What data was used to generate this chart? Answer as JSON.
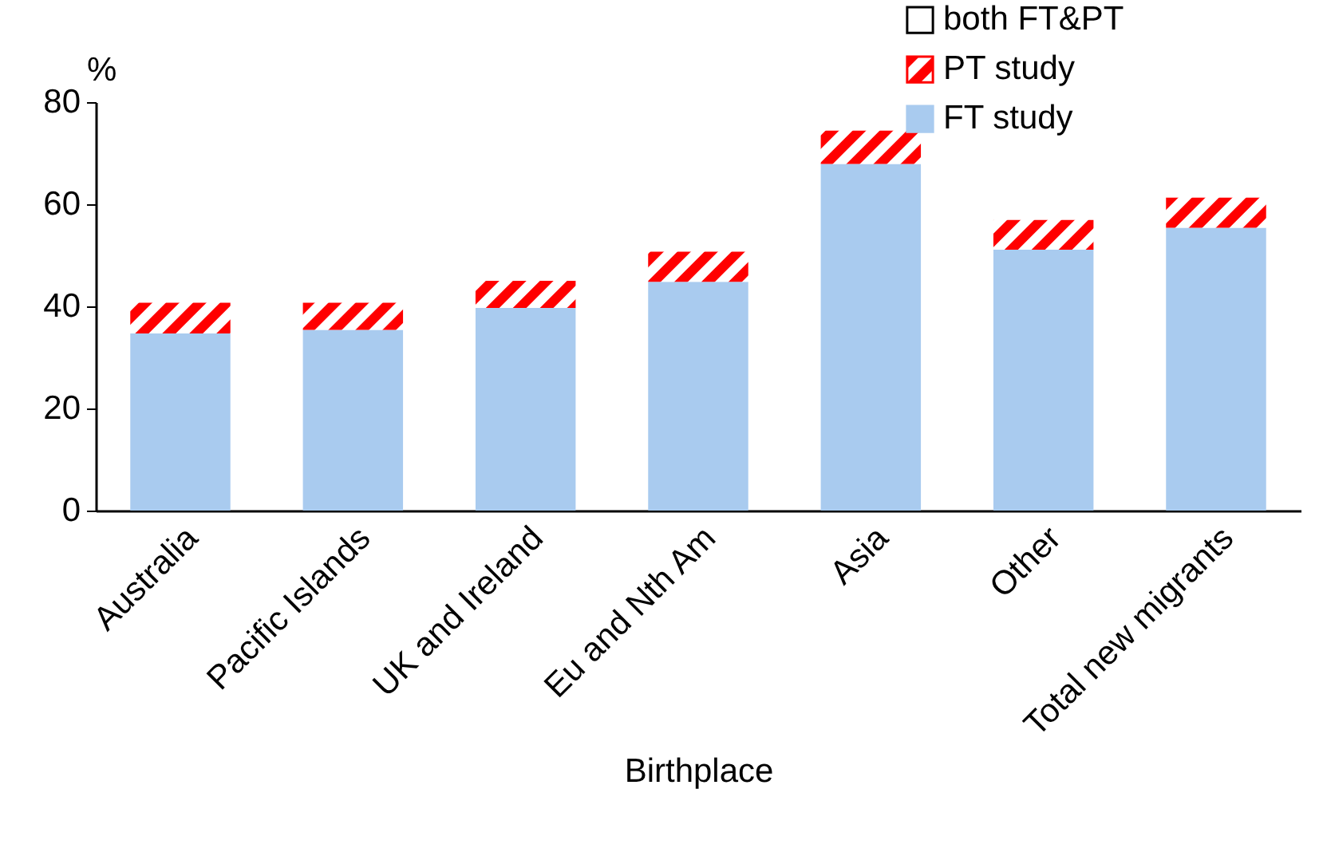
{
  "chart_data": {
    "type": "bar",
    "stacked": true,
    "xlabel": "Birthplace",
    "ylabel": "%",
    "categories": [
      "Australia",
      "Pacific Islands",
      "UK and Ireland",
      "Eu and Nth Am",
      "Asia",
      "Other",
      "Total new migrants"
    ],
    "ylim": [
      0,
      80
    ],
    "yticks": [
      0,
      20,
      40,
      60,
      80
    ],
    "grid": false,
    "legend": "top right",
    "series": [
      {
        "name": "FT study",
        "color": "#a9cbef",
        "values": [
          34.7,
          35.4,
          39.7,
          44.8,
          67.9,
          51.1,
          55.4
        ]
      },
      {
        "name": "PT study",
        "color": "#ff0000",
        "values": [
          6.0,
          5.3,
          5.3,
          5.9,
          6.5,
          5.8,
          5.9
        ]
      },
      {
        "name": "both FT&PT",
        "color": "#ffffff",
        "values": [
          null,
          null,
          null,
          null,
          null,
          null,
          null
        ]
      }
    ]
  }
}
